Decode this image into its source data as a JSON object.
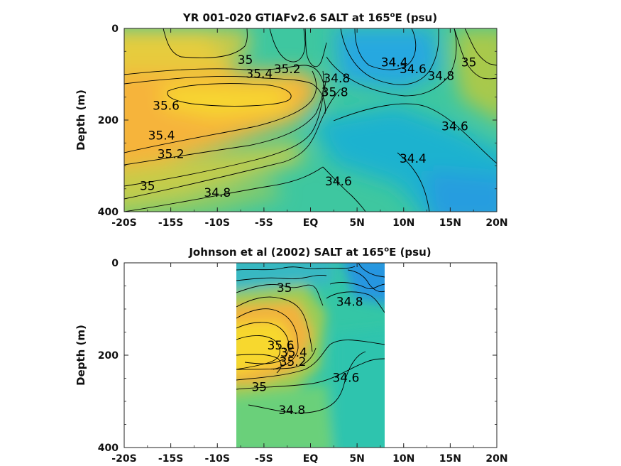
{
  "chart_data": [
    {
      "type": "heatmap",
      "title_main": "YR 001-020 GTIAFv2.6 SALT at 165",
      "title_sup": "o",
      "title_tail": "E (psu)",
      "ylabel": "Depth (m)",
      "xlim": [
        -20,
        20
      ],
      "ylim": [
        0,
        400
      ],
      "y_reversed": true,
      "x_ticks": [
        {
          "value": -20,
          "label": "-20S"
        },
        {
          "value": -15,
          "label": "-15S"
        },
        {
          "value": -10,
          "label": "-10S"
        },
        {
          "value": -5,
          "label": "-5S"
        },
        {
          "value": 0,
          "label": "EQ"
        },
        {
          "value": 5,
          "label": "5N"
        },
        {
          "value": 10,
          "label": "10N"
        },
        {
          "value": 15,
          "label": "15N"
        },
        {
          "value": 20,
          "label": "20N"
        }
      ],
      "y_ticks": [
        {
          "value": 0,
          "label": "0"
        },
        {
          "value": 200,
          "label": "200"
        },
        {
          "value": 400,
          "label": "400"
        }
      ],
      "data_extent_x": [
        -20,
        20
      ],
      "colors": {
        "salty": "#f5d22e",
        "mid": "#3ec7a0",
        "fresh": "#2a9ee0"
      },
      "contour_labels": [
        {
          "text": "35",
          "lat": -7.0,
          "depth": 70
        },
        {
          "text": "35.4",
          "lat": -5.5,
          "depth": 100
        },
        {
          "text": "35.2",
          "lat": -2.5,
          "depth": 90
        },
        {
          "text": "34.8",
          "lat": 2.8,
          "depth": 110
        },
        {
          "text": "35.8",
          "lat": 2.6,
          "depth": 140
        },
        {
          "text": "34.4",
          "lat": 9.0,
          "depth": 75
        },
        {
          "text": "34.6",
          "lat": 11.0,
          "depth": 90
        },
        {
          "text": "34.8",
          "lat": 14.0,
          "depth": 105
        },
        {
          "text": "35",
          "lat": 17.0,
          "depth": 75
        },
        {
          "text": "35.6",
          "lat": -15.5,
          "depth": 170
        },
        {
          "text": "35.4",
          "lat": -16.0,
          "depth": 235
        },
        {
          "text": "35.2",
          "lat": -15.0,
          "depth": 275
        },
        {
          "text": "34.6",
          "lat": 15.5,
          "depth": 215
        },
        {
          "text": "34.4",
          "lat": 11.0,
          "depth": 285
        },
        {
          "text": "35",
          "lat": -17.5,
          "depth": 345
        },
        {
          "text": "34.8",
          "lat": -10.0,
          "depth": 360
        },
        {
          "text": "34.6",
          "lat": 3.0,
          "depth": 335
        }
      ]
    },
    {
      "type": "heatmap",
      "title_main": "Johnson et al (2002) SALT at 165",
      "title_sup": "o",
      "title_tail": "E (psu)",
      "ylabel": "Depth (m)",
      "xlim": [
        -20,
        20
      ],
      "ylim": [
        0,
        400
      ],
      "y_reversed": true,
      "x_ticks": [
        {
          "value": -20,
          "label": "-20S"
        },
        {
          "value": -15,
          "label": "-15S"
        },
        {
          "value": -10,
          "label": "-10S"
        },
        {
          "value": -5,
          "label": "-5S"
        },
        {
          "value": 0,
          "label": "EQ"
        },
        {
          "value": 5,
          "label": "5N"
        },
        {
          "value": 10,
          "label": "10N"
        },
        {
          "value": 15,
          "label": "15N"
        },
        {
          "value": 20,
          "label": "20N"
        }
      ],
      "y_ticks": [
        {
          "value": 0,
          "label": "0"
        },
        {
          "value": 200,
          "label": "200"
        },
        {
          "value": 400,
          "label": "400"
        }
      ],
      "data_extent_x": [
        -8,
        8
      ],
      "colors": {
        "salty": "#f5d22e",
        "mid": "#3ec7a0",
        "fresh": "#2a9ee0"
      },
      "contour_labels": [
        {
          "text": "35",
          "lat": -2.8,
          "depth": 55
        },
        {
          "text": "34.8",
          "lat": 4.2,
          "depth": 85
        },
        {
          "text": "35.6",
          "lat": -3.2,
          "depth": 180
        },
        {
          "text": "35.4",
          "lat": -1.8,
          "depth": 195
        },
        {
          "text": "35.2",
          "lat": -1.9,
          "depth": 215
        },
        {
          "text": "35",
          "lat": -5.5,
          "depth": 270
        },
        {
          "text": "34.6",
          "lat": 3.8,
          "depth": 250
        },
        {
          "text": "34.8",
          "lat": -2.0,
          "depth": 320
        }
      ]
    }
  ]
}
